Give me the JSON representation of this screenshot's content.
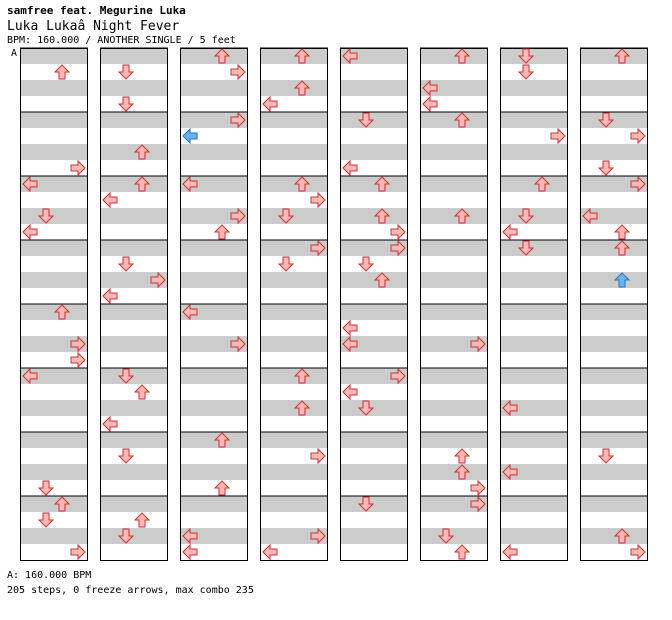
{
  "header": {
    "artist": "samfree feat. Megurine Luka",
    "title": "Luka Lukaâ  Night Fever",
    "meta": "BPM: 160.000 / ANOTHER SINGLE / 5 feet"
  },
  "speed_marker": "A",
  "footer": {
    "bpm_line": "A: 160.000 BPM",
    "stats_line": "205 steps, 0 freeze arrows, max combo 235"
  },
  "colors": {
    "arrow_normal": "#ffb8b8",
    "arrow_normal_stroke": "#c83232",
    "arrow_special": "#6ab4f0",
    "arrow_special_stroke": "#2a70b8",
    "stripe": "#cccccc",
    "background": "#ffffff"
  },
  "chart": {
    "lanes": [
      "left",
      "down",
      "up",
      "right"
    ],
    "measures_per_column": 8,
    "rows_per_measure": 16,
    "columns": [
      [
        [],
        [
          [
            3,
            "up"
          ],
          [
            5,
            "right"
          ],
          [
            6,
            "up"
          ],
          [
            6,
            "right"
          ]
        ],
        [
          [
            10,
            "right"
          ],
          [
            12,
            "up"
          ],
          [
            12,
            "right"
          ]
        ],
        [],
        [
          [
            0,
            "left"
          ],
          [
            2,
            "down"
          ],
          [
            4,
            "up"
          ],
          [
            4,
            "right"
          ]
        ],
        [
          [
            8,
            "right"
          ],
          [
            10,
            "down"
          ],
          [
            12,
            "up"
          ],
          [
            14,
            "down"
          ]
        ],
        [
          [
            16,
            "left"
          ],
          [
            18,
            "up"
          ],
          [
            20,
            "left"
          ],
          [
            20,
            "up"
          ]
        ],
        [
          [
            24,
            "down"
          ],
          [
            26,
            "up"
          ],
          [
            28,
            "down"
          ],
          [
            28,
            "right"
          ]
        ],
        [
          [
            30,
            "up"
          ],
          [
            30,
            "right"
          ],
          [
            32,
            "down"
          ],
          [
            34,
            "left"
          ]
        ],
        [
          [
            34,
            "left"
          ],
          [
            36,
            "down"
          ],
          [
            38,
            "left"
          ],
          [
            40,
            "up"
          ]
        ],
        [
          [
            42,
            "up"
          ],
          [
            44,
            "down"
          ],
          [
            46,
            "left"
          ]
        ]
      ]
    ]
  }
}
